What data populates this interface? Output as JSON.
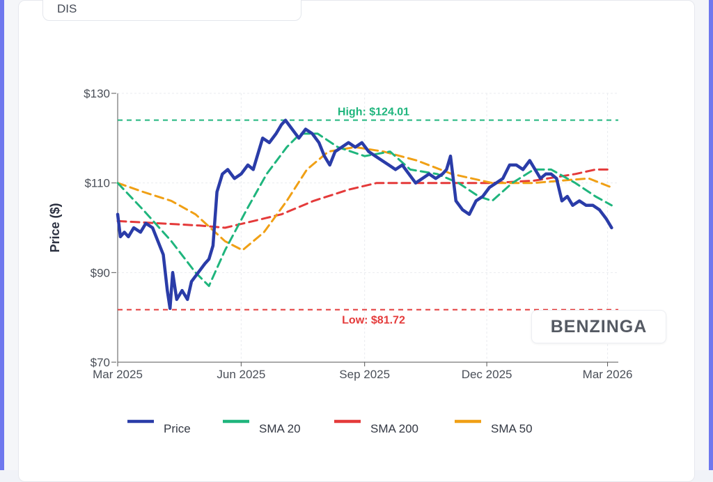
{
  "ticker": "DIS",
  "watermark": "BENZINGA",
  "colors": {
    "price": "#2a3ca8",
    "sma20": "#1fb57d",
    "sma200": "#e43a3a",
    "sma50": "#f0a015"
  },
  "chart_data": {
    "type": "line",
    "title": "",
    "xlabel": "",
    "ylabel": "Price ($)",
    "ylim": [
      70,
      130
    ],
    "yticks": [
      {
        "value": 70,
        "label": "$70"
      },
      {
        "value": 90,
        "label": "$90"
      },
      {
        "value": 110,
        "label": "$110"
      },
      {
        "value": 130,
        "label": "$130"
      }
    ],
    "xticks": [
      {
        "date": "2025-03-01",
        "label": "Mar 2025"
      },
      {
        "date": "2025-06-01",
        "label": "Jun 2025"
      },
      {
        "date": "2025-09-01",
        "label": "Sep 2025"
      },
      {
        "date": "2025-12-01",
        "label": "Dec 2025"
      },
      {
        "date": "2026-03-01",
        "label": "Mar 2026"
      }
    ],
    "xrange": [
      "2025-03-01",
      "2026-03-09"
    ],
    "grid": true,
    "legend_position": "bottom",
    "annotations": [
      {
        "name": "high",
        "label": "High: $124.01",
        "value": 124.01,
        "color": "#1fb57d"
      },
      {
        "name": "low",
        "label": "Low: $81.72",
        "value": 81.72,
        "color": "#e43a3a"
      }
    ],
    "series": [
      {
        "name": "Price",
        "key": "price",
        "style": "solid",
        "points": [
          [
            "2025-03-01",
            103
          ],
          [
            "2025-03-03",
            98
          ],
          [
            "2025-03-06",
            99
          ],
          [
            "2025-03-09",
            98
          ],
          [
            "2025-03-13",
            100
          ],
          [
            "2025-03-18",
            99
          ],
          [
            "2025-03-22",
            101
          ],
          [
            "2025-03-27",
            100
          ],
          [
            "2025-03-31",
            97
          ],
          [
            "2025-04-04",
            94
          ],
          [
            "2025-04-07",
            86
          ],
          [
            "2025-04-09",
            82
          ],
          [
            "2025-04-11",
            90
          ],
          [
            "2025-04-14",
            84
          ],
          [
            "2025-04-18",
            86
          ],
          [
            "2025-04-22",
            84
          ],
          [
            "2025-04-25",
            88
          ],
          [
            "2025-04-30",
            90
          ],
          [
            "2025-05-05",
            92
          ],
          [
            "2025-05-08",
            93
          ],
          [
            "2025-05-11",
            96
          ],
          [
            "2025-05-14",
            108
          ],
          [
            "2025-05-18",
            112
          ],
          [
            "2025-05-22",
            113
          ],
          [
            "2025-05-27",
            111
          ],
          [
            "2025-06-01",
            112
          ],
          [
            "2025-06-06",
            114
          ],
          [
            "2025-06-10",
            113
          ],
          [
            "2025-06-14",
            117
          ],
          [
            "2025-06-17",
            120
          ],
          [
            "2025-06-22",
            119
          ],
          [
            "2025-06-27",
            121
          ],
          [
            "2025-07-01",
            123
          ],
          [
            "2025-07-04",
            124
          ],
          [
            "2025-07-09",
            122
          ],
          [
            "2025-07-14",
            120
          ],
          [
            "2025-07-19",
            122
          ],
          [
            "2025-07-24",
            121
          ],
          [
            "2025-07-29",
            119
          ],
          [
            "2025-08-02",
            116
          ],
          [
            "2025-08-06",
            114
          ],
          [
            "2025-08-10",
            117
          ],
          [
            "2025-08-15",
            118
          ],
          [
            "2025-08-20",
            119
          ],
          [
            "2025-08-25",
            118
          ],
          [
            "2025-08-30",
            119
          ],
          [
            "2025-09-04",
            117
          ],
          [
            "2025-09-09",
            116
          ],
          [
            "2025-09-14",
            115
          ],
          [
            "2025-09-19",
            114
          ],
          [
            "2025-09-24",
            113
          ],
          [
            "2025-09-29",
            114
          ],
          [
            "2025-10-04",
            112
          ],
          [
            "2025-10-09",
            110
          ],
          [
            "2025-10-14",
            111
          ],
          [
            "2025-10-19",
            112
          ],
          [
            "2025-10-24",
            111
          ],
          [
            "2025-10-29",
            112
          ],
          [
            "2025-11-01",
            113
          ],
          [
            "2025-11-04",
            116
          ],
          [
            "2025-11-08",
            106
          ],
          [
            "2025-11-13",
            104
          ],
          [
            "2025-11-18",
            103
          ],
          [
            "2025-11-23",
            106
          ],
          [
            "2025-11-28",
            107
          ],
          [
            "2025-12-03",
            109
          ],
          [
            "2025-12-08",
            110
          ],
          [
            "2025-12-13",
            111
          ],
          [
            "2025-12-18",
            114
          ],
          [
            "2025-12-23",
            114
          ],
          [
            "2025-12-28",
            113
          ],
          [
            "2026-01-02",
            115
          ],
          [
            "2026-01-06",
            113
          ],
          [
            "2026-01-10",
            111
          ],
          [
            "2026-01-14",
            112
          ],
          [
            "2026-01-18",
            112
          ],
          [
            "2026-01-22",
            111
          ],
          [
            "2026-01-26",
            106
          ],
          [
            "2026-01-30",
            107
          ],
          [
            "2026-02-03",
            105
          ],
          [
            "2026-02-08",
            106
          ],
          [
            "2026-02-13",
            105
          ],
          [
            "2026-02-18",
            105
          ],
          [
            "2026-02-23",
            104
          ],
          [
            "2026-02-28",
            102
          ],
          [
            "2026-03-04",
            100
          ]
        ]
      },
      {
        "name": "SMA 20",
        "key": "sma20",
        "style": "dashed",
        "points": [
          [
            "2025-03-01",
            110
          ],
          [
            "2025-03-20",
            104
          ],
          [
            "2025-04-10",
            97
          ],
          [
            "2025-04-28",
            90
          ],
          [
            "2025-05-08",
            87
          ],
          [
            "2025-05-20",
            95
          ],
          [
            "2025-06-05",
            104
          ],
          [
            "2025-06-20",
            112
          ],
          [
            "2025-07-05",
            118
          ],
          [
            "2025-07-15",
            121
          ],
          [
            "2025-07-28",
            121
          ],
          [
            "2025-08-12",
            118
          ],
          [
            "2025-09-01",
            116
          ],
          [
            "2025-09-20",
            117
          ],
          [
            "2025-10-05",
            113
          ],
          [
            "2025-10-25",
            112
          ],
          [
            "2025-11-10",
            110
          ],
          [
            "2025-11-25",
            107
          ],
          [
            "2025-12-05",
            106
          ],
          [
            "2025-12-20",
            110
          ],
          [
            "2026-01-05",
            113
          ],
          [
            "2026-01-18",
            113
          ],
          [
            "2026-02-05",
            110
          ],
          [
            "2026-02-20",
            107
          ],
          [
            "2026-03-04",
            105
          ]
        ]
      },
      {
        "name": "SMA 200",
        "key": "sma200",
        "style": "dashed",
        "points": [
          [
            "2025-03-01",
            101.5
          ],
          [
            "2025-04-01",
            101
          ],
          [
            "2025-05-01",
            100.5
          ],
          [
            "2025-05-20",
            100
          ],
          [
            "2025-06-10",
            101.5
          ],
          [
            "2025-07-01",
            103
          ],
          [
            "2025-07-25",
            106
          ],
          [
            "2025-08-20",
            108.5
          ],
          [
            "2025-09-10",
            110
          ],
          [
            "2025-10-10",
            110
          ],
          [
            "2025-11-10",
            110
          ],
          [
            "2025-12-05",
            110
          ],
          [
            "2026-01-05",
            110.5
          ],
          [
            "2026-02-05",
            112
          ],
          [
            "2026-02-20",
            113
          ],
          [
            "2026-03-04",
            113
          ]
        ]
      },
      {
        "name": "SMA 50",
        "key": "sma50",
        "style": "dashed",
        "points": [
          [
            "2025-03-01",
            110
          ],
          [
            "2025-03-20",
            108
          ],
          [
            "2025-04-10",
            106
          ],
          [
            "2025-04-28",
            103
          ],
          [
            "2025-05-20",
            97
          ],
          [
            "2025-06-02",
            95
          ],
          [
            "2025-06-18",
            99
          ],
          [
            "2025-07-05",
            106
          ],
          [
            "2025-07-20",
            113
          ],
          [
            "2025-08-05",
            117
          ],
          [
            "2025-08-25",
            118
          ],
          [
            "2025-09-15",
            117
          ],
          [
            "2025-10-10",
            115
          ],
          [
            "2025-11-05",
            112
          ],
          [
            "2025-12-05",
            110
          ],
          [
            "2026-01-05",
            110
          ],
          [
            "2026-01-25",
            110.5
          ],
          [
            "2026-02-15",
            111
          ],
          [
            "2026-03-04",
            109
          ]
        ]
      }
    ]
  },
  "legend": [
    {
      "label": "Price",
      "key": "price"
    },
    {
      "label": "SMA 20",
      "key": "sma20"
    },
    {
      "label": "SMA 200",
      "key": "sma200"
    },
    {
      "label": "SMA 50",
      "key": "sma50"
    }
  ]
}
